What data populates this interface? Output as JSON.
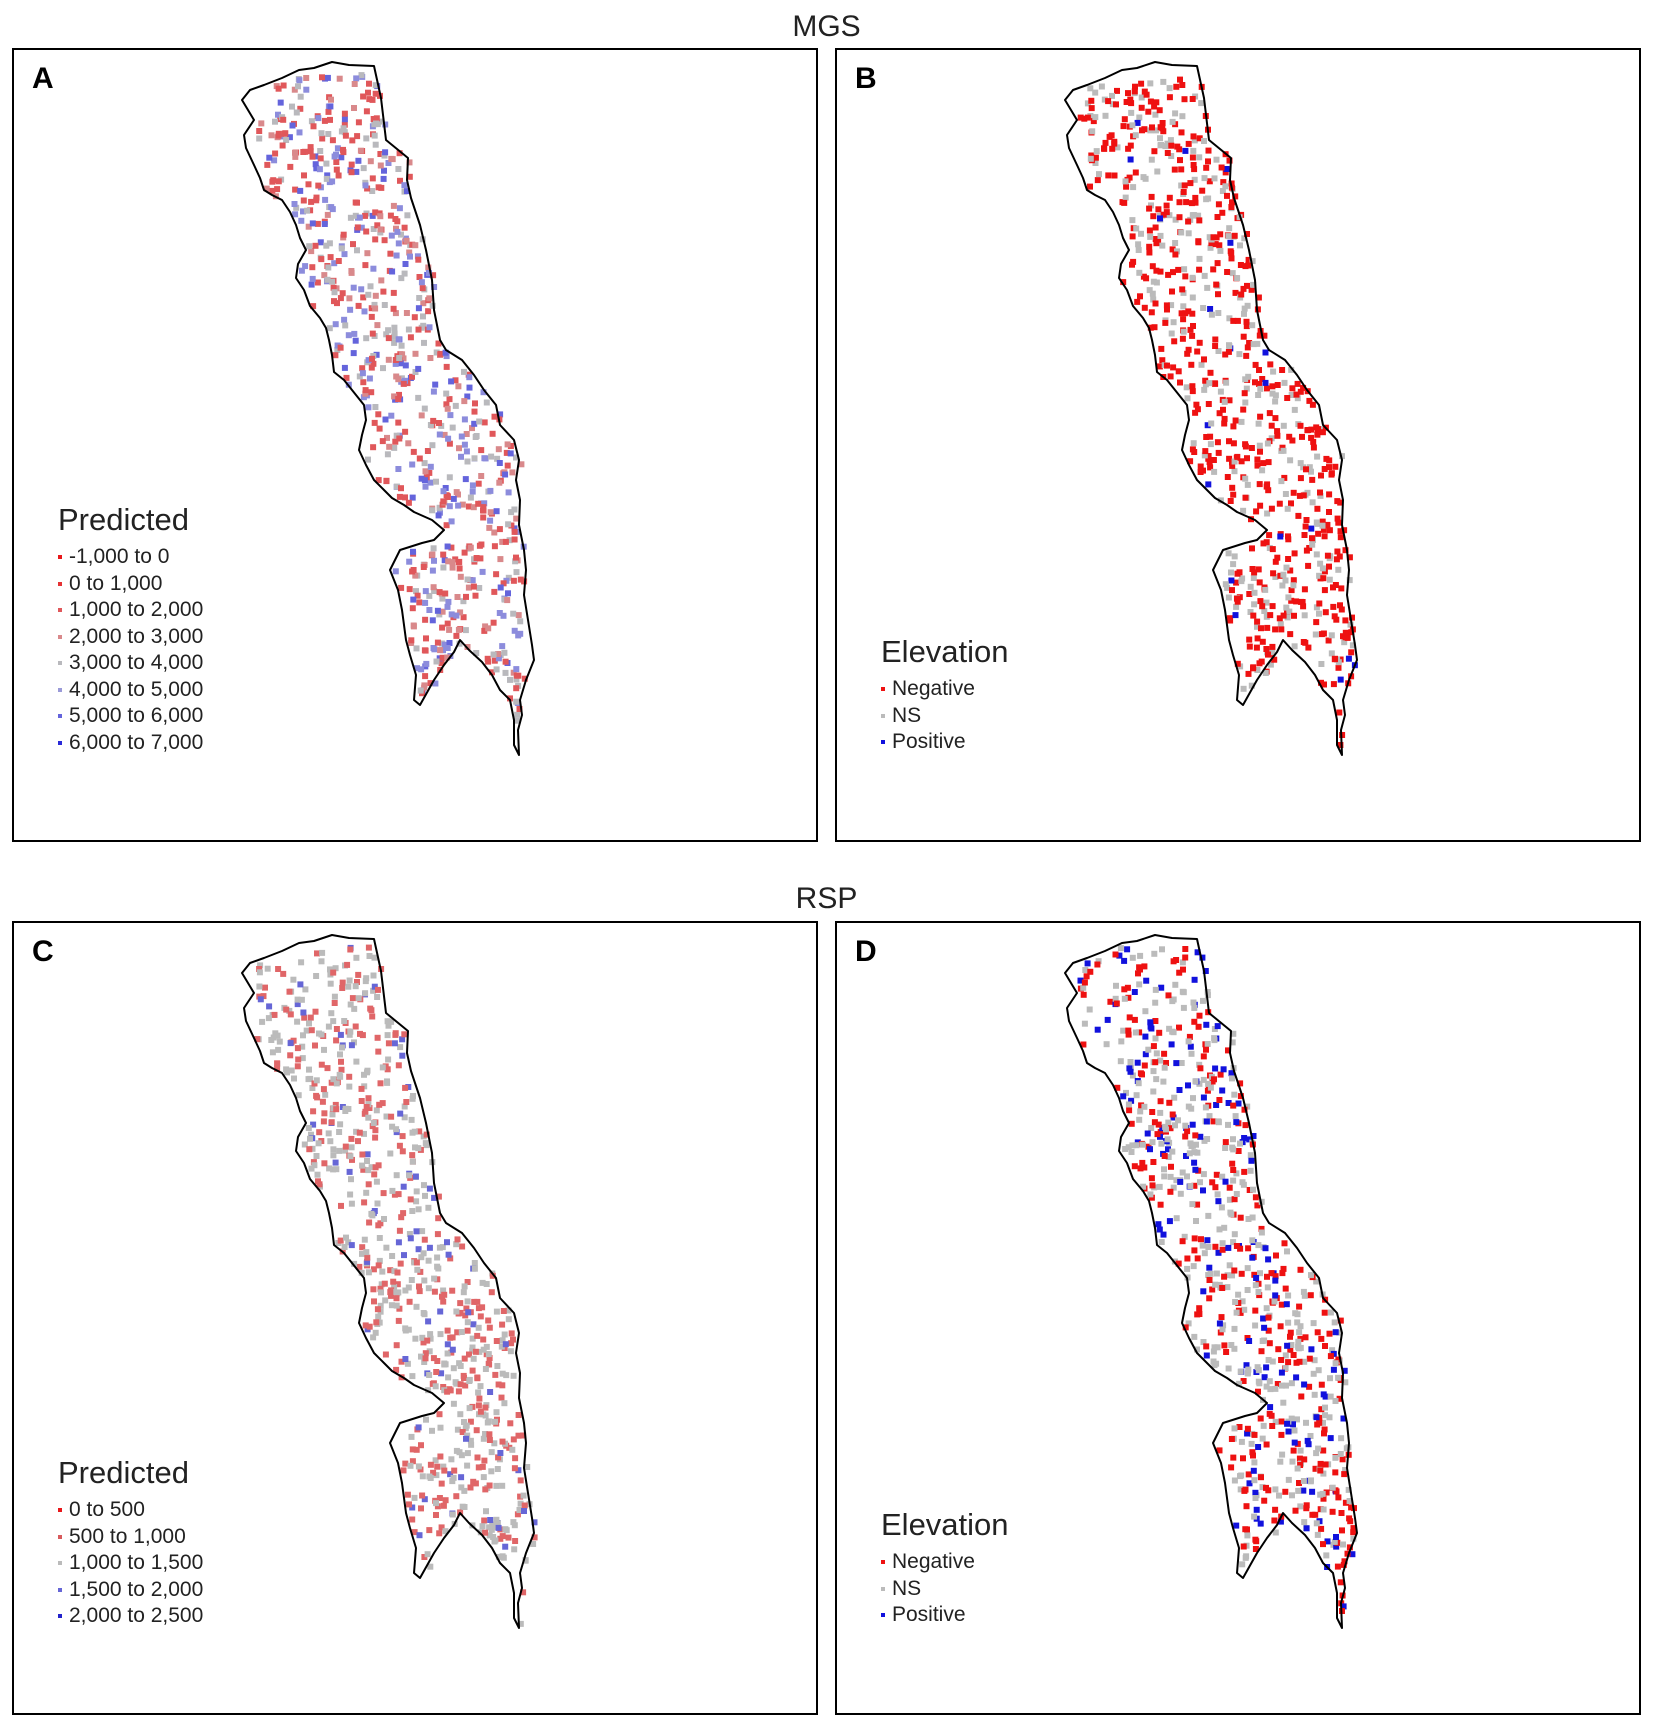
{
  "sections": [
    {
      "title": "MGS"
    },
    {
      "title": "RSP"
    }
  ],
  "panels": [
    {
      "label": "A",
      "legend": {
        "title": "Predicted",
        "items": [
          {
            "label": "-1,000 to 0",
            "color": "#e8171a"
          },
          {
            "label": "0 to 1,000",
            "color": "#e53234"
          },
          {
            "label": "1,000 to 2,000",
            "color": "#e0575a"
          },
          {
            "label": "2,000 to 3,000",
            "color": "#d9898b"
          },
          {
            "label": "3,000 to 4,000",
            "color": "#b9b9bd"
          },
          {
            "label": "4,000 to 5,000",
            "color": "#9a9ad8"
          },
          {
            "label": "5,000 to 6,000",
            "color": "#6464dc"
          },
          {
            "label": "6,000 to 7,000",
            "color": "#2a2ad8"
          }
        ]
      },
      "dot_mix": {
        "#e0575a": 0.35,
        "#d9898b": 0.15,
        "#b9b9bd": 0.2,
        "#8c8cdc": 0.2,
        "#6464dc": 0.1
      }
    },
    {
      "label": "B",
      "legend": {
        "title": "Elevation",
        "items": [
          {
            "label": "Negative",
            "color": "#ee1111"
          },
          {
            "label": "NS",
            "color": "#bbbbbb"
          },
          {
            "label": "Positive",
            "color": "#1111dd"
          }
        ]
      },
      "dot_mix": {
        "#ee1111": 0.62,
        "#bbbbbb": 0.35,
        "#1111dd": 0.03
      }
    },
    {
      "label": "C",
      "legend": {
        "title": "Predicted",
        "items": [
          {
            "label": "0 to 500",
            "color": "#e8171a"
          },
          {
            "label": "500 to 1,000",
            "color": "#d85a5c"
          },
          {
            "label": "1,000 to 1,500",
            "color": "#bbbbbb"
          },
          {
            "label": "1,500 to 2,000",
            "color": "#6666d6"
          },
          {
            "label": "2,000 to 2,500",
            "color": "#2222cc"
          }
        ]
      },
      "dot_mix": {
        "#e06668": 0.42,
        "#bbbbbb": 0.5,
        "#6666d6": 0.08
      }
    },
    {
      "label": "D",
      "legend": {
        "title": "Elevation",
        "items": [
          {
            "label": "Negative",
            "color": "#ee1111"
          },
          {
            "label": "NS",
            "color": "#bbbbbb"
          },
          {
            "label": "Positive",
            "color": "#1111dd"
          }
        ]
      },
      "dot_mix": {
        "#ee1111": 0.38,
        "#bbbbbb": 0.44,
        "#1111dd": 0.18
      }
    }
  ]
}
